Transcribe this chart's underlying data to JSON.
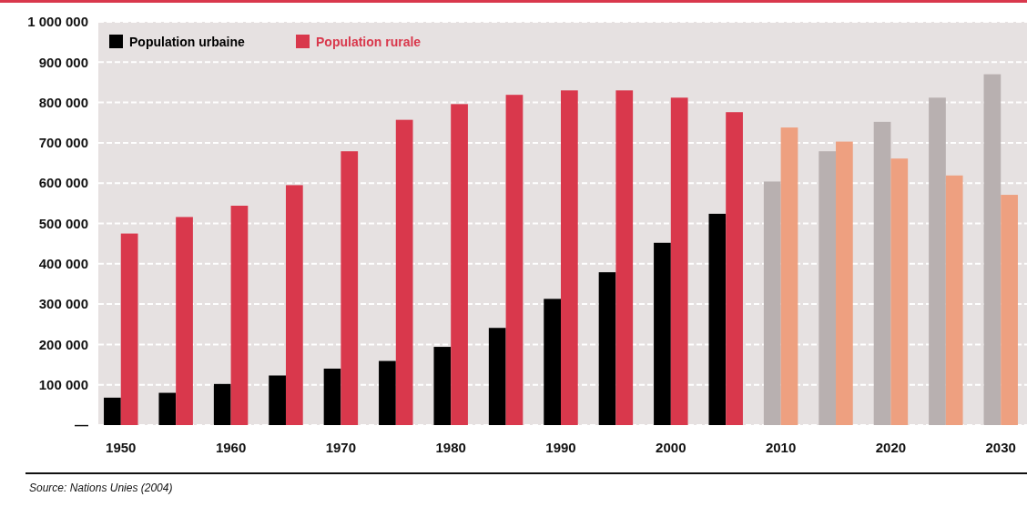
{
  "chart_data": {
    "type": "bar",
    "categories": [
      "1950",
      null,
      "1960",
      null,
      "1970",
      null,
      "1980",
      null,
      "1990",
      null,
      "2000",
      null,
      "2010",
      null,
      "2020",
      null,
      "2030"
    ],
    "series": [
      {
        "name": "Population urbaine",
        "color": "#000000",
        "colors": [
          "#000000",
          "#000000",
          "#000000",
          "#000000",
          "#000000",
          "#000000",
          "#000000",
          "#000000",
          "#000000",
          "#000000",
          "#000000",
          "#000000",
          "#b8b0b0",
          "#b8b0b0",
          "#b8b0b0",
          "#b8b0b0",
          "#b8b0b0"
        ],
        "values": [
          68000,
          80000,
          102000,
          123000,
          140000,
          159000,
          194000,
          241000,
          313000,
          379000,
          452000,
          524000,
          604000,
          679000,
          752000,
          812000,
          870000
        ]
      },
      {
        "name": "Population rurale",
        "color": "#d9384c",
        "colors": [
          "#d9384c",
          "#d9384c",
          "#d9384c",
          "#d9384c",
          "#d9384c",
          "#d9384c",
          "#d9384c",
          "#d9384c",
          "#d9384c",
          "#d9384c",
          "#d9384c",
          "#d9384c",
          "#eea080",
          "#eea080",
          "#eea080",
          "#eea080",
          "#eea080"
        ],
        "values": [
          475000,
          516000,
          544000,
          595000,
          679000,
          757000,
          796000,
          819000,
          830000,
          830000,
          812000,
          776000,
          738000,
          703000,
          661000,
          619000,
          571000
        ]
      }
    ],
    "ylim": [
      0,
      1000000
    ],
    "yticks": [
      {
        "value": 0,
        "label": "—"
      },
      {
        "value": 100000,
        "label": "100 000"
      },
      {
        "value": 200000,
        "label": "200 000"
      },
      {
        "value": 300000,
        "label": "300 000"
      },
      {
        "value": 400000,
        "label": "400 000"
      },
      {
        "value": 500000,
        "label": "500 000"
      },
      {
        "value": 600000,
        "label": "600 000"
      },
      {
        "value": 700000,
        "label": "700 000"
      },
      {
        "value": 800000,
        "label": "800 000"
      },
      {
        "value": 900000,
        "label": "900 000"
      },
      {
        "value": 1000000,
        "label": "1 000 000"
      }
    ],
    "grid": "y",
    "legend": "top left",
    "annotations": [
      "Source: Nations Unies (2004)"
    ]
  }
}
